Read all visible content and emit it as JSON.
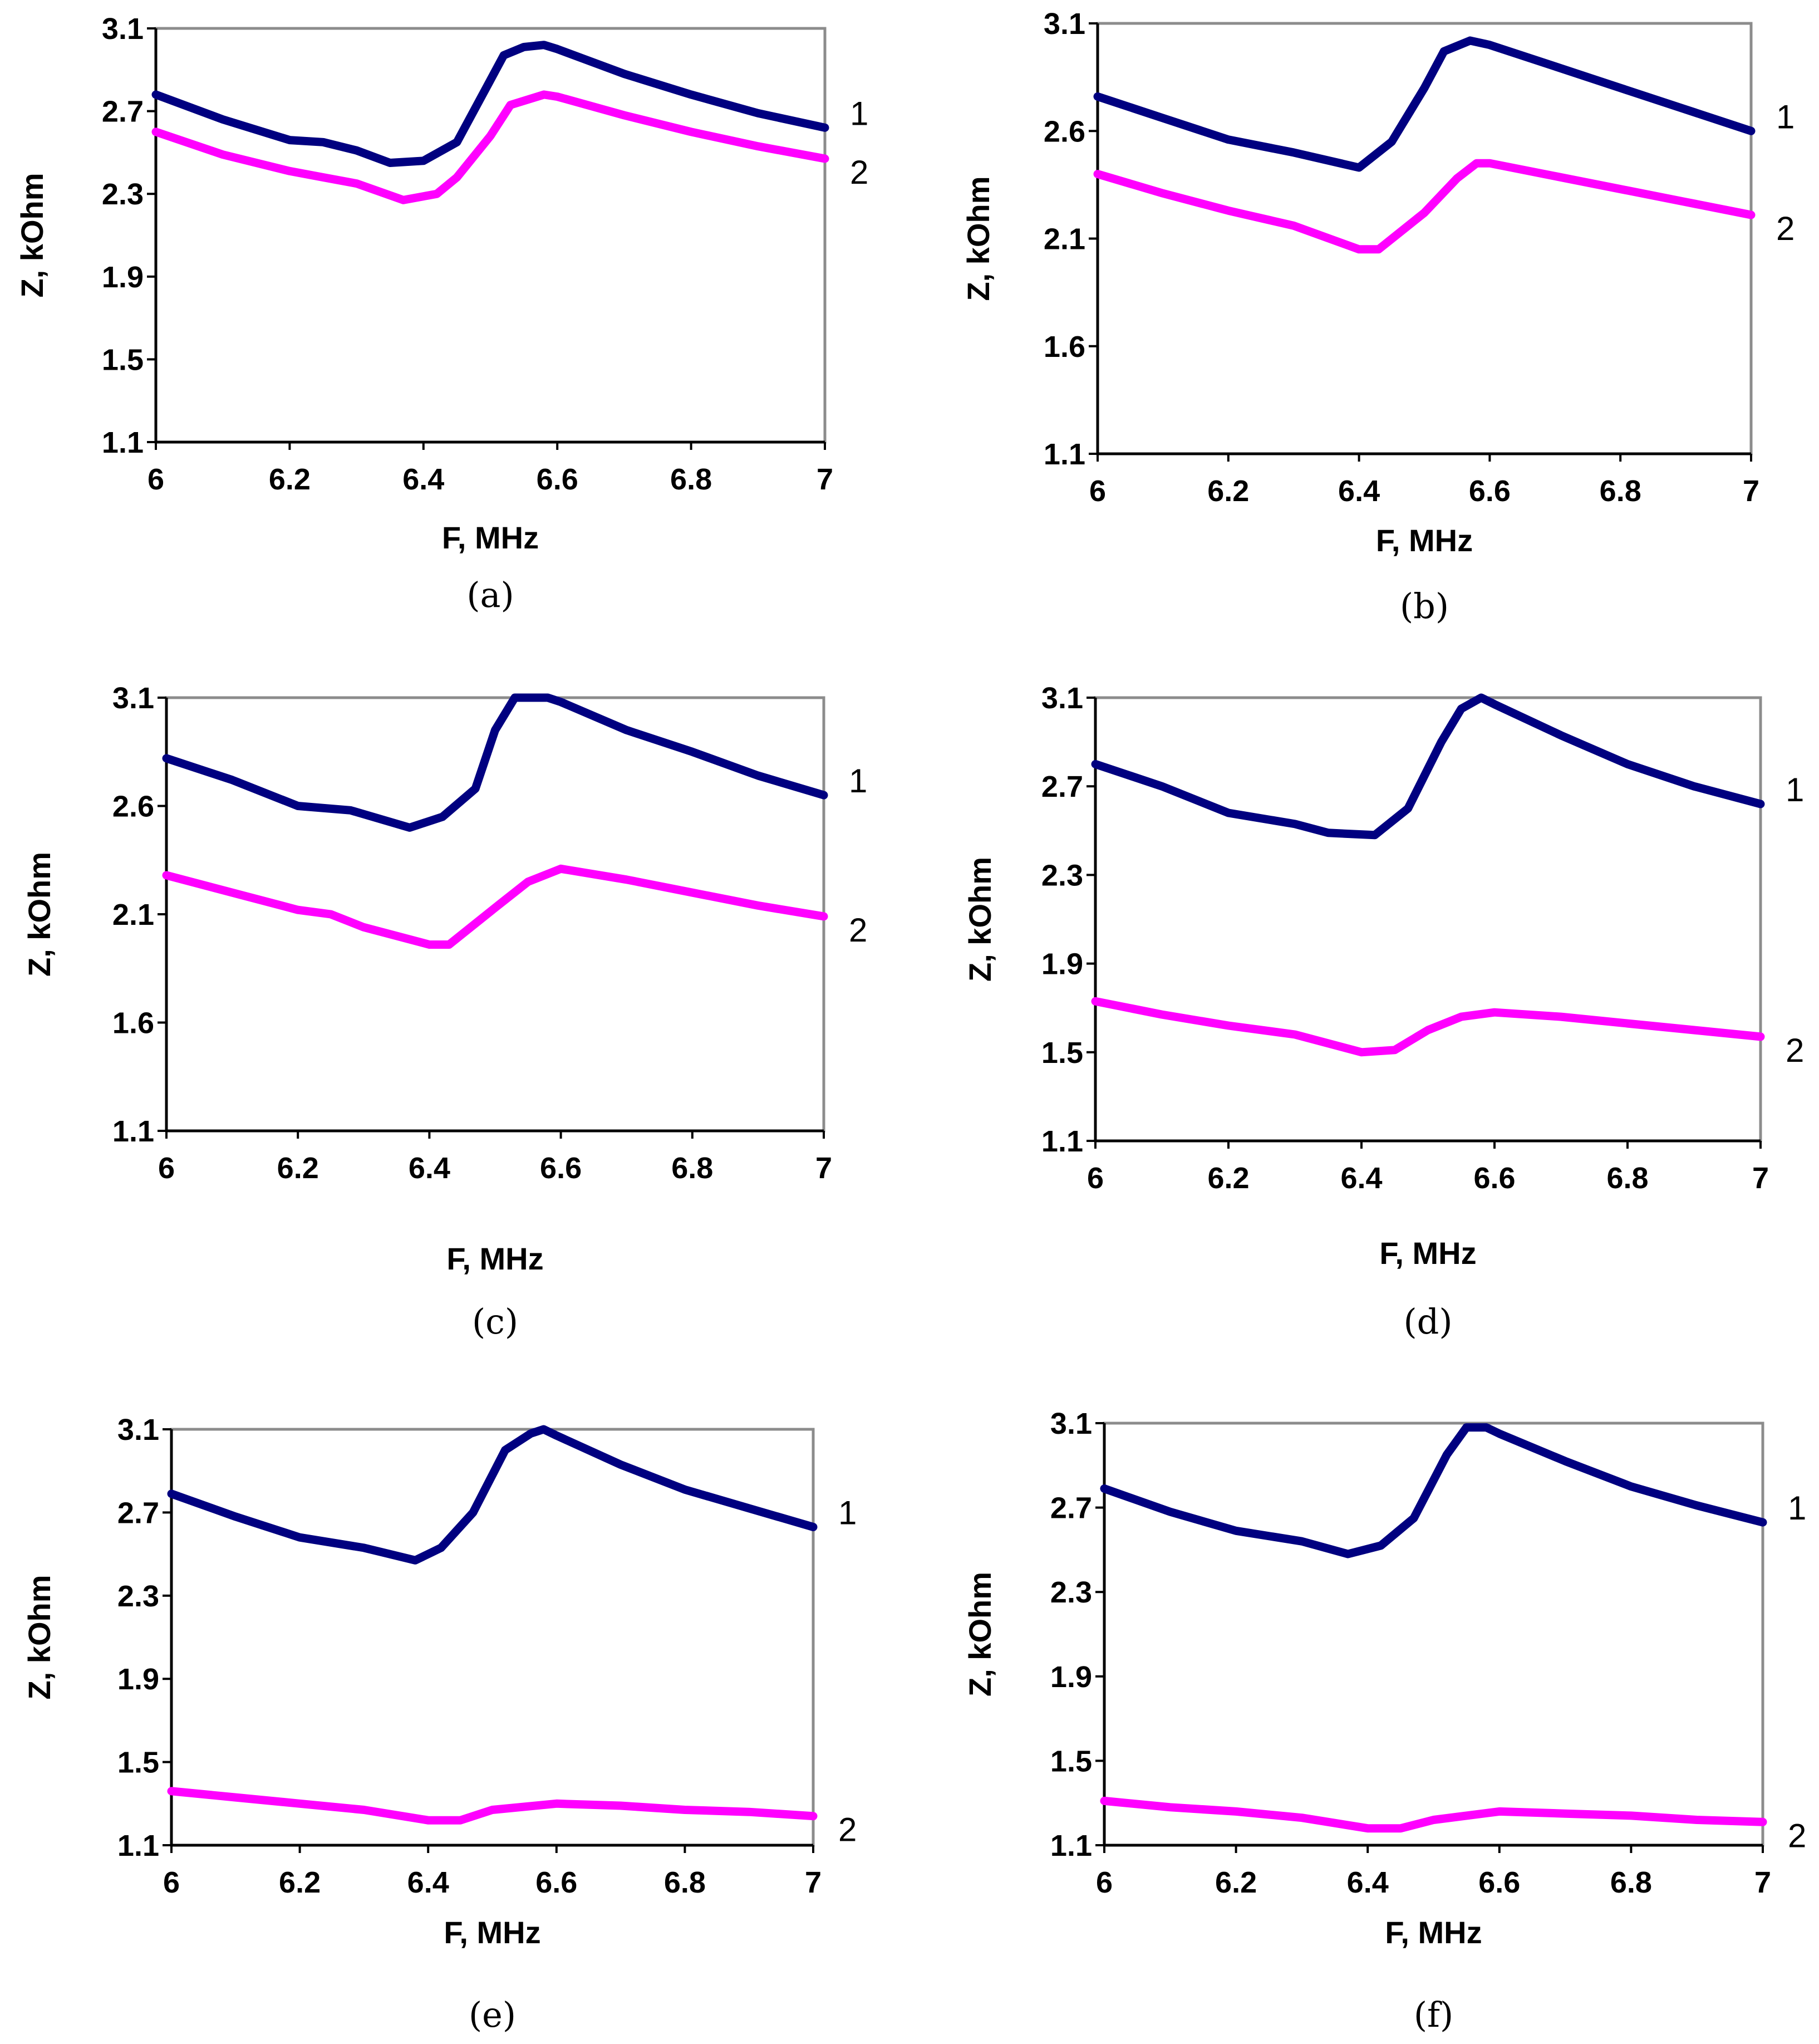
{
  "colors": {
    "series1": "#000080",
    "series2": "#ff00ff",
    "frame": "#8c8c8c"
  },
  "chart_data": [
    {
      "type": "line",
      "caption": "(a)",
      "xlabel": "F, MHz",
      "ylabel": "Z, kOhm",
      "xlim": [
        6,
        7
      ],
      "ylim": [
        1.1,
        3.1
      ],
      "xticks": [
        "6",
        "6.2",
        "6.4",
        "6.6",
        "6.8",
        "7"
      ],
      "yticks": [
        "1.1",
        "1.5",
        "1.9",
        "2.3",
        "2.7",
        "3.1"
      ],
      "series": [
        {
          "name": "1",
          "x": [
            6,
            6.1,
            6.2,
            6.25,
            6.3,
            6.35,
            6.4,
            6.45,
            6.5,
            6.52,
            6.55,
            6.58,
            6.6,
            6.7,
            6.8,
            6.9,
            7
          ],
          "y": [
            2.78,
            2.66,
            2.56,
            2.55,
            2.51,
            2.45,
            2.46,
            2.55,
            2.85,
            2.97,
            3.01,
            3.02,
            3.0,
            2.88,
            2.78,
            2.69,
            2.62
          ]
        },
        {
          "name": "2",
          "x": [
            6,
            6.1,
            6.2,
            6.25,
            6.3,
            6.37,
            6.42,
            6.45,
            6.5,
            6.53,
            6.58,
            6.6,
            6.7,
            6.8,
            6.9,
            7
          ],
          "y": [
            2.6,
            2.49,
            2.41,
            2.38,
            2.35,
            2.27,
            2.3,
            2.38,
            2.58,
            2.73,
            2.78,
            2.77,
            2.68,
            2.6,
            2.53,
            2.47
          ]
        }
      ]
    },
    {
      "type": "line",
      "caption": "(b)",
      "xlabel": "F, MHz",
      "ylabel": "Z, kOhm",
      "xlim": [
        6,
        7
      ],
      "ylim": [
        1.1,
        3.1
      ],
      "xticks": [
        "6",
        "6.2",
        "6.4",
        "6.6",
        "6.8",
        "7"
      ],
      "yticks": [
        "1.1",
        "1.6",
        "2.1",
        "2.6",
        "3.1"
      ],
      "series": [
        {
          "name": "1",
          "x": [
            6,
            6.1,
            6.2,
            6.3,
            6.4,
            6.45,
            6.5,
            6.53,
            6.57,
            6.6,
            6.7,
            6.8,
            6.9,
            7
          ],
          "y": [
            2.76,
            2.66,
            2.56,
            2.5,
            2.43,
            2.55,
            2.8,
            2.97,
            3.02,
            3.0,
            2.9,
            2.8,
            2.7,
            2.6
          ]
        },
        {
          "name": "2",
          "x": [
            6,
            6.1,
            6.2,
            6.3,
            6.4,
            6.43,
            6.5,
            6.55,
            6.58,
            6.6,
            6.7,
            6.8,
            6.9,
            7
          ],
          "y": [
            2.4,
            2.31,
            2.23,
            2.16,
            2.05,
            2.05,
            2.22,
            2.38,
            2.45,
            2.45,
            2.39,
            2.33,
            2.27,
            2.21
          ]
        }
      ]
    },
    {
      "type": "line",
      "caption": "(c)",
      "xlabel": "F, MHz",
      "ylabel": "Z, kOhm",
      "xlim": [
        6,
        7
      ],
      "ylim": [
        1.1,
        3.1
      ],
      "xticks": [
        "6",
        "6.2",
        "6.4",
        "6.6",
        "6.8",
        "7"
      ],
      "yticks": [
        "1.1",
        "1.6",
        "2.1",
        "2.6",
        "3.1"
      ],
      "series": [
        {
          "name": "1",
          "x": [
            6,
            6.1,
            6.2,
            6.28,
            6.37,
            6.42,
            6.47,
            6.5,
            6.53,
            6.58,
            6.6,
            6.7,
            6.8,
            6.9,
            7
          ],
          "y": [
            2.82,
            2.72,
            2.6,
            2.58,
            2.5,
            2.55,
            2.68,
            2.95,
            3.1,
            3.1,
            3.08,
            2.95,
            2.85,
            2.74,
            2.65
          ]
        },
        {
          "name": "2",
          "x": [
            6,
            6.1,
            6.2,
            6.25,
            6.3,
            6.4,
            6.43,
            6.5,
            6.55,
            6.6,
            6.7,
            6.8,
            6.9,
            7
          ],
          "y": [
            2.28,
            2.2,
            2.12,
            2.1,
            2.04,
            1.96,
            1.96,
            2.13,
            2.25,
            2.31,
            2.26,
            2.2,
            2.14,
            2.09
          ]
        }
      ]
    },
    {
      "type": "line",
      "caption": "(d)",
      "xlabel": "F, MHz",
      "ylabel": "Z, kOhm",
      "xlim": [
        6,
        7
      ],
      "ylim": [
        1.1,
        3.1
      ],
      "xticks": [
        "6",
        "6.2",
        "6.4",
        "6.6",
        "6.8",
        "7"
      ],
      "yticks": [
        "1.1",
        "1.5",
        "1.9",
        "2.3",
        "2.7",
        "3.1"
      ],
      "series": [
        {
          "name": "1",
          "x": [
            6,
            6.1,
            6.2,
            6.3,
            6.35,
            6.42,
            6.47,
            6.52,
            6.55,
            6.58,
            6.6,
            6.7,
            6.8,
            6.9,
            7
          ],
          "y": [
            2.8,
            2.7,
            2.58,
            2.53,
            2.49,
            2.48,
            2.6,
            2.9,
            3.05,
            3.1,
            3.07,
            2.93,
            2.8,
            2.7,
            2.62
          ]
        },
        {
          "name": "2",
          "x": [
            6,
            6.1,
            6.2,
            6.3,
            6.4,
            6.45,
            6.5,
            6.55,
            6.6,
            6.7,
            6.8,
            6.9,
            7
          ],
          "y": [
            1.73,
            1.67,
            1.62,
            1.58,
            1.5,
            1.51,
            1.6,
            1.66,
            1.68,
            1.66,
            1.63,
            1.6,
            1.57
          ]
        }
      ]
    },
    {
      "type": "line",
      "caption": "(e)",
      "xlabel": "F, MHz",
      "ylabel": "Z, kOhm",
      "xlim": [
        6,
        7
      ],
      "ylim": [
        1.1,
        3.1
      ],
      "xticks": [
        "6",
        "6.2",
        "6.4",
        "6.6",
        "6.8",
        "7"
      ],
      "yticks": [
        "1.1",
        "1.5",
        "1.9",
        "2.3",
        "2.7",
        "3.1"
      ],
      "series": [
        {
          "name": "1",
          "x": [
            6,
            6.1,
            6.2,
            6.3,
            6.38,
            6.42,
            6.47,
            6.52,
            6.56,
            6.58,
            6.6,
            6.7,
            6.8,
            6.9,
            7
          ],
          "y": [
            2.79,
            2.68,
            2.58,
            2.53,
            2.47,
            2.53,
            2.7,
            3.0,
            3.08,
            3.1,
            3.07,
            2.93,
            2.81,
            2.72,
            2.63
          ]
        },
        {
          "name": "2",
          "x": [
            6,
            6.1,
            6.2,
            6.3,
            6.4,
            6.45,
            6.5,
            6.6,
            6.7,
            6.8,
            6.9,
            7
          ],
          "y": [
            1.36,
            1.33,
            1.3,
            1.27,
            1.22,
            1.22,
            1.27,
            1.3,
            1.29,
            1.27,
            1.26,
            1.24
          ]
        }
      ]
    },
    {
      "type": "line",
      "caption": "(f)",
      "xlabel": "F, MHz",
      "ylabel": "Z, kOhm",
      "xlim": [
        6,
        7
      ],
      "ylim": [
        1.1,
        3.1
      ],
      "xticks": [
        "6",
        "6.2",
        "6.4",
        "6.6",
        "6.8",
        "7"
      ],
      "yticks": [
        "1.1",
        "1.5",
        "1.9",
        "2.3",
        "2.7",
        "3.1"
      ],
      "series": [
        {
          "name": "1",
          "x": [
            6,
            6.1,
            6.2,
            6.3,
            6.37,
            6.42,
            6.47,
            6.52,
            6.55,
            6.58,
            6.6,
            6.7,
            6.8,
            6.9,
            7
          ],
          "y": [
            2.79,
            2.68,
            2.59,
            2.54,
            2.48,
            2.52,
            2.65,
            2.95,
            3.08,
            3.08,
            3.05,
            2.92,
            2.8,
            2.71,
            2.63
          ]
        },
        {
          "name": "2",
          "x": [
            6,
            6.1,
            6.2,
            6.3,
            6.4,
            6.45,
            6.5,
            6.6,
            6.7,
            6.8,
            6.9,
            7
          ],
          "y": [
            1.31,
            1.28,
            1.26,
            1.23,
            1.18,
            1.18,
            1.22,
            1.26,
            1.25,
            1.24,
            1.22,
            1.21
          ]
        }
      ]
    }
  ]
}
